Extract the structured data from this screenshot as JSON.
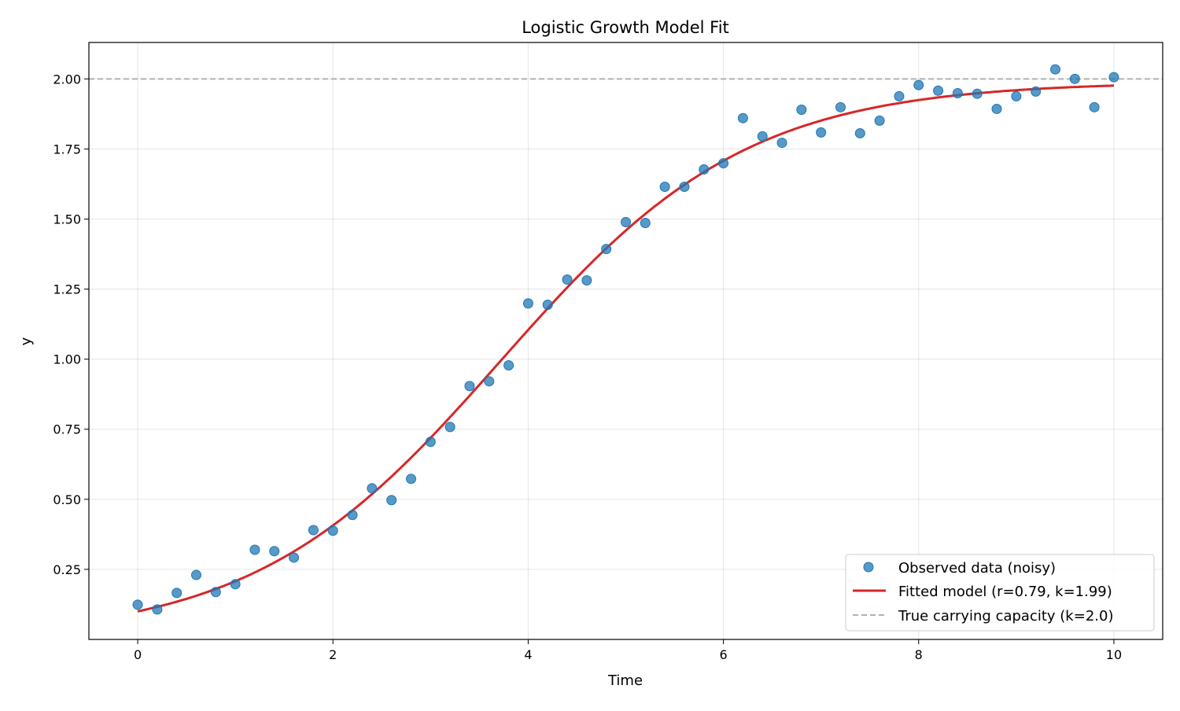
{
  "chart_data": {
    "type": "scatter",
    "title": "Logistic Growth Model Fit",
    "xlabel": "Time",
    "ylabel": "y",
    "xlim": [
      -0.5,
      10.5
    ],
    "ylim": [
      0.0,
      2.13
    ],
    "xticks": [
      0,
      2,
      4,
      6,
      8,
      10
    ],
    "xtick_labels": [
      "0",
      "2",
      "4",
      "6",
      "8",
      "10"
    ],
    "yticks": [
      0.25,
      0.5,
      0.75,
      1.0,
      1.25,
      1.5,
      1.75,
      2.0
    ],
    "ytick_labels": [
      "0.25",
      "0.50",
      "0.75",
      "1.00",
      "1.25",
      "1.50",
      "1.75",
      "2.00"
    ],
    "grid": true,
    "legend_placement": "lower-right",
    "series": [
      {
        "name": "Observed data (noisy)",
        "kind": "scatter",
        "color": "#1f77b4",
        "x": [
          0,
          0.2,
          0.4,
          0.6,
          0.8,
          1.0,
          1.2,
          1.4,
          1.6,
          1.8,
          2.0,
          2.2,
          2.4,
          2.6,
          2.8,
          3.0,
          3.2,
          3.4,
          3.6,
          3.8,
          4.0,
          4.2,
          4.4,
          4.6,
          4.8,
          5.0,
          5.2,
          5.4,
          5.6,
          5.8,
          6.0,
          6.2,
          6.4,
          6.6,
          6.8,
          7.0,
          7.2,
          7.4,
          7.6,
          7.8,
          8.0,
          8.2,
          8.4,
          8.6,
          8.8,
          9.0,
          9.2,
          9.4,
          9.6,
          9.8,
          10.0
        ],
        "y": [
          0.124,
          0.107,
          0.166,
          0.23,
          0.169,
          0.197,
          0.32,
          0.315,
          0.292,
          0.39,
          0.388,
          0.444,
          0.539,
          0.497,
          0.573,
          0.705,
          0.758,
          0.904,
          0.921,
          0.978,
          1.199,
          1.194,
          1.284,
          1.281,
          1.393,
          1.489,
          1.486,
          1.615,
          1.615,
          1.677,
          1.699,
          1.86,
          1.795,
          1.772,
          1.89,
          1.809,
          1.899,
          1.806,
          1.851,
          1.938,
          1.978,
          1.958,
          1.949,
          1.947,
          1.893,
          1.938,
          1.955,
          2.034,
          2.0,
          1.899,
          2.006
        ]
      },
      {
        "name": "Fitted model (r=0.79, k=1.99)",
        "kind": "line",
        "color": "#d62728",
        "model": {
          "r": 0.79,
          "k": 1.99,
          "y0": 0.1,
          "x_range": [
            0,
            10
          ]
        }
      },
      {
        "name": "True carrying capacity (k=2.0)",
        "kind": "hline",
        "color": "#b0b0b0",
        "y": 2.0,
        "style": "dashed"
      }
    ]
  }
}
